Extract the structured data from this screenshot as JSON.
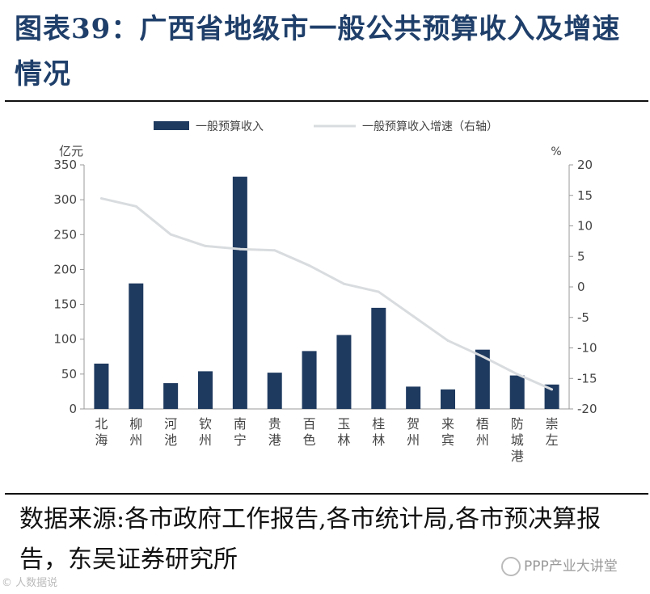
{
  "title": "图表39：广西省地级市一般公共预算收入及增速情况",
  "source": "数据来源:各市政府工作报告,各市统计局,各市预决算报告，东吴证券研究所",
  "watermark_left": "© 人数据说",
  "watermark_right": "PPP产业大讲堂",
  "colors": {
    "bar": "#1f3a5f",
    "line": "#d9dcdf",
    "axis": "#999999",
    "text": "#444444"
  },
  "chart_data": {
    "type": "bar",
    "title": "",
    "categories": [
      "北海",
      "柳州",
      "河池",
      "钦州",
      "南宁",
      "贵港",
      "百色",
      "玉林",
      "桂林",
      "贺州",
      "来宾",
      "梧州",
      "防城港",
      "崇左"
    ],
    "series": [
      {
        "name": "一般预算收入",
        "type": "bar",
        "axis": "left",
        "values": [
          65,
          180,
          37,
          54,
          333,
          52,
          83,
          106,
          145,
          32,
          28,
          85,
          48,
          35
        ]
      },
      {
        "name": "一般预算收入增速（右轴）",
        "type": "line",
        "axis": "right",
        "values": [
          14.5,
          13.2,
          8.6,
          6.7,
          6.2,
          6.0,
          3.5,
          0.5,
          -0.8,
          -4.8,
          -8.8,
          -11.4,
          -14.3,
          -16.8
        ]
      }
    ],
    "ylabel_left": "亿元",
    "ylabel_right": "%",
    "ylim_left": [
      0,
      350
    ],
    "ylim_right": [
      -20,
      20
    ],
    "yticks_left": [
      0,
      50,
      100,
      150,
      200,
      250,
      300,
      350
    ],
    "yticks_right": [
      -20,
      -15,
      -10,
      -5,
      0,
      5,
      10,
      15,
      20
    ],
    "legend_position": "top",
    "grid": false
  }
}
